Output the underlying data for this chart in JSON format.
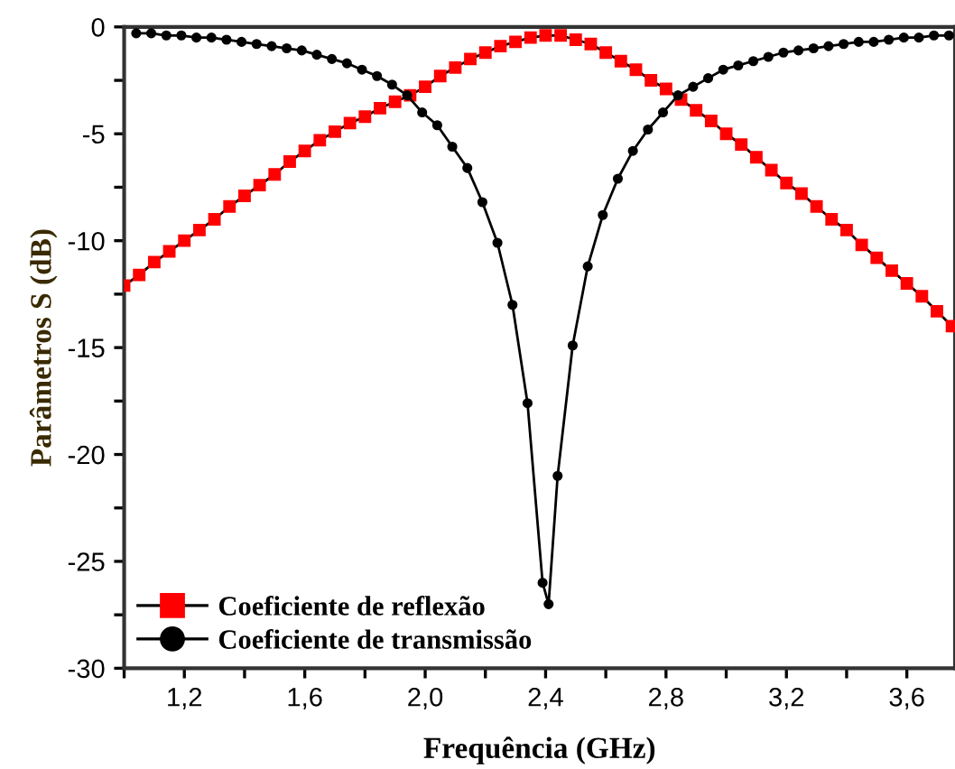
{
  "chart_data": {
    "type": "line",
    "xlabel": "Frequência (GHz)",
    "ylabel": "Parâmetros S (dB)",
    "xlim": [
      1.0,
      3.76
    ],
    "ylim": [
      -30,
      0
    ],
    "xticks": [
      {
        "value": 1.0,
        "label": null
      },
      {
        "value": 1.2,
        "label": "1,2"
      },
      {
        "value": 1.4,
        "label": null
      },
      {
        "value": 1.6,
        "label": "1,6"
      },
      {
        "value": 1.8,
        "label": null
      },
      {
        "value": 2.0,
        "label": "2,0"
      },
      {
        "value": 2.2,
        "label": null
      },
      {
        "value": 2.4,
        "label": "2,4"
      },
      {
        "value": 2.6,
        "label": null
      },
      {
        "value": 2.8,
        "label": "2,8"
      },
      {
        "value": 3.0,
        "label": null
      },
      {
        "value": 3.2,
        "label": "3,2"
      },
      {
        "value": 3.4,
        "label": null
      },
      {
        "value": 3.6,
        "label": "3,6"
      }
    ],
    "yticks": [
      -30,
      {
        "value": -27.5,
        "label": null
      },
      -25,
      {
        "value": -22.5,
        "label": null
      },
      -20,
      {
        "value": -17.5,
        "label": null
      },
      -15,
      {
        "value": -12.5,
        "label": null
      },
      -10,
      {
        "value": -7.5,
        "label": null
      },
      -5,
      {
        "value": -2.5,
        "label": null
      },
      0
    ],
    "grid": false,
    "legend": "bottom left",
    "line_style": "solid",
    "series": [
      {
        "name": "Coeficiente de reflexão",
        "color": "#ff0000",
        "marker": "square",
        "x": [
          1.0,
          1.05,
          1.1,
          1.15,
          1.2,
          1.25,
          1.3,
          1.35,
          1.4,
          1.45,
          1.5,
          1.55,
          1.6,
          1.65,
          1.7,
          1.75,
          1.8,
          1.85,
          1.9,
          1.95,
          2.0,
          2.05,
          2.1,
          2.15,
          2.2,
          2.25,
          2.3,
          2.35,
          2.4,
          2.45,
          2.5,
          2.55,
          2.6,
          2.65,
          2.7,
          2.75,
          2.8,
          2.85,
          2.9,
          2.95,
          3.0,
          3.05,
          3.1,
          3.15,
          3.2,
          3.25,
          3.3,
          3.35,
          3.4,
          3.45,
          3.5,
          3.55,
          3.6,
          3.65,
          3.7,
          3.75
        ],
        "values": [
          -12.1,
          -11.6,
          -11.0,
          -10.5,
          -10.0,
          -9.5,
          -9.0,
          -8.4,
          -7.9,
          -7.4,
          -6.9,
          -6.3,
          -5.8,
          -5.3,
          -4.9,
          -4.5,
          -4.2,
          -3.8,
          -3.5,
          -3.2,
          -2.8,
          -2.3,
          -1.9,
          -1.5,
          -1.2,
          -0.9,
          -0.7,
          -0.5,
          -0.4,
          -0.4,
          -0.6,
          -0.8,
          -1.2,
          -1.6,
          -2.0,
          -2.5,
          -2.9,
          -3.4,
          -3.9,
          -4.4,
          -5.0,
          -5.5,
          -6.1,
          -6.7,
          -7.3,
          -7.8,
          -8.4,
          -9.0,
          -9.5,
          -10.2,
          -10.8,
          -11.4,
          -12.0,
          -12.6,
          -13.3,
          -14.0
        ]
      },
      {
        "name": "Coeficiente de transmissão",
        "color": "#000000",
        "marker": "circle",
        "x": [
          1.04,
          1.09,
          1.14,
          1.19,
          1.24,
          1.29,
          1.34,
          1.39,
          1.44,
          1.49,
          1.54,
          1.59,
          1.64,
          1.69,
          1.74,
          1.79,
          1.84,
          1.89,
          1.94,
          1.99,
          2.04,
          2.09,
          2.14,
          2.19,
          2.24,
          2.29,
          2.34,
          2.39,
          2.41,
          2.44,
          2.49,
          2.54,
          2.59,
          2.64,
          2.69,
          2.74,
          2.79,
          2.84,
          2.89,
          2.94,
          2.99,
          3.04,
          3.09,
          3.14,
          3.19,
          3.24,
          3.29,
          3.34,
          3.39,
          3.44,
          3.49,
          3.54,
          3.59,
          3.64,
          3.69,
          3.74
        ],
        "values": [
          -0.3,
          -0.3,
          -0.4,
          -0.4,
          -0.5,
          -0.5,
          -0.6,
          -0.7,
          -0.8,
          -0.9,
          -1.0,
          -1.1,
          -1.3,
          -1.5,
          -1.7,
          -2.0,
          -2.3,
          -2.7,
          -3.2,
          -4.0,
          -4.6,
          -5.6,
          -6.6,
          -8.2,
          -10.1,
          -13.0,
          -17.6,
          -26.0,
          -27.0,
          -21.0,
          -14.9,
          -11.2,
          -8.8,
          -7.1,
          -5.8,
          -4.8,
          -4.0,
          -3.2,
          -2.8,
          -2.4,
          -2.0,
          -1.8,
          -1.6,
          -1.4,
          -1.2,
          -1.1,
          -1.0,
          -0.9,
          -0.8,
          -0.7,
          -0.7,
          -0.6,
          -0.5,
          -0.5,
          -0.4,
          -0.4
        ]
      }
    ]
  }
}
